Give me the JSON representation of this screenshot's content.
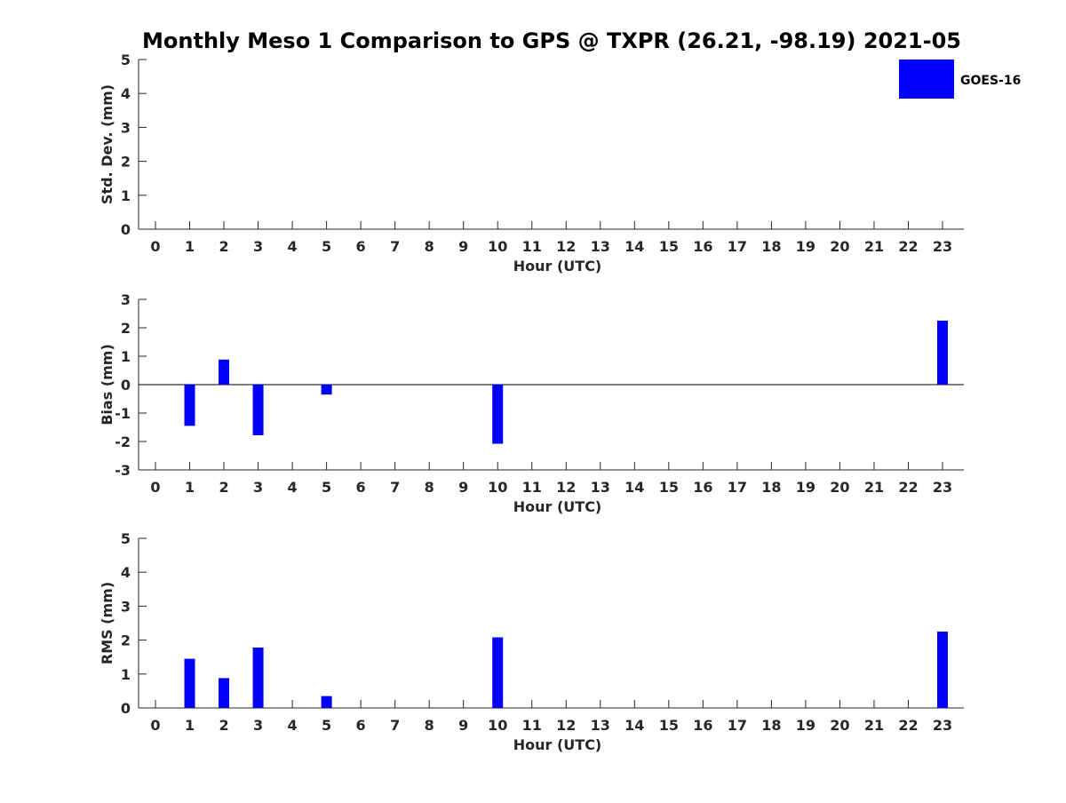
{
  "chart_data": {
    "type": "bar",
    "title": "Monthly Meso 1 Comparison to GPS @ TXPR (26.21, -98.19) 2021-05",
    "legend": {
      "placement": "top-right",
      "entries": [
        {
          "name": "GOES-16",
          "color": "#0000ff"
        }
      ]
    },
    "categories": [
      "0",
      "1",
      "2",
      "3",
      "4",
      "5",
      "6",
      "7",
      "8",
      "9",
      "10",
      "11",
      "12",
      "13",
      "14",
      "15",
      "16",
      "17",
      "18",
      "19",
      "20",
      "21",
      "22",
      "23"
    ],
    "panels": [
      {
        "id": "stddev",
        "ylabel": "Std. Dev. (mm)",
        "xlabel": "Hour (UTC)",
        "ylim": [
          0,
          5
        ],
        "yticks": [
          "0",
          "1",
          "2",
          "3",
          "4",
          "5"
        ],
        "series": [
          {
            "name": "GOES-16",
            "color": "#0000ff",
            "values": [
              null,
              null,
              null,
              null,
              null,
              null,
              null,
              null,
              null,
              null,
              null,
              null,
              null,
              null,
              null,
              null,
              null,
              null,
              null,
              null,
              null,
              null,
              null,
              null
            ]
          }
        ]
      },
      {
        "id": "bias",
        "ylabel": "Bias (mm)",
        "xlabel": "Hour (UTC)",
        "ylim": [
          -3,
          3
        ],
        "yticks": [
          "-3",
          "-2",
          "-1",
          "0",
          "1",
          "2",
          "3"
        ],
        "zero_line": true,
        "series": [
          {
            "name": "GOES-16",
            "color": "#0000ff",
            "values": [
              null,
              -1.45,
              0.88,
              -1.78,
              null,
              -0.35,
              null,
              null,
              null,
              null,
              -2.08,
              null,
              null,
              null,
              null,
              null,
              null,
              null,
              null,
              null,
              null,
              null,
              null,
              2.25
            ]
          }
        ]
      },
      {
        "id": "rms",
        "ylabel": "RMS (mm)",
        "xlabel": "Hour (UTC)",
        "ylim": [
          0,
          5
        ],
        "yticks": [
          "0",
          "1",
          "2",
          "3",
          "4",
          "5"
        ],
        "series": [
          {
            "name": "GOES-16",
            "color": "#0000ff",
            "values": [
              null,
              1.45,
              0.88,
              1.78,
              null,
              0.35,
              null,
              null,
              null,
              null,
              2.08,
              null,
              null,
              null,
              null,
              null,
              null,
              null,
              null,
              null,
              null,
              null,
              null,
              2.25
            ]
          }
        ]
      }
    ]
  }
}
